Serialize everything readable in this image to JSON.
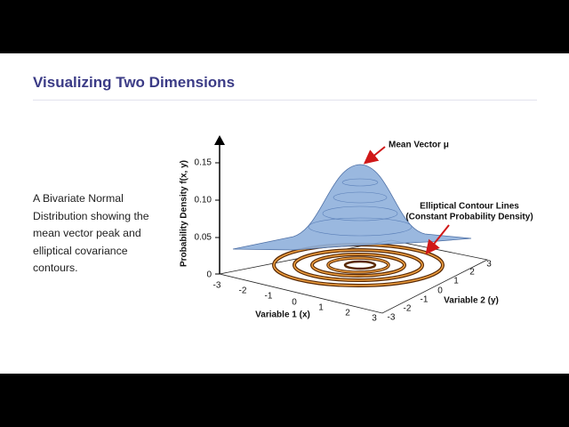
{
  "slide": {
    "title": "Visualizing Two Dimensions",
    "body": "A Bivariate Normal Distribution showing the mean vector peak and elliptical covariance contours.",
    "figure": {
      "z_axis_label": "Probability Density f(x, y)",
      "z_ticks": [
        "0",
        "0.05",
        "0.10",
        "0.15"
      ],
      "x_axis_label": "Variable 1 (x)",
      "x_ticks": [
        "-3",
        "-2",
        "-1",
        "0",
        "1",
        "2",
        "3"
      ],
      "y_axis_label": "Variable 2 (y)",
      "y_ticks": [
        "-3",
        "-2",
        "-1",
        "0",
        "1",
        "2",
        "3"
      ],
      "annotations": [
        "Mean Vector μ",
        "Elliptical Contour Lines",
        "(Constant Probability Density)"
      ]
    }
  }
}
